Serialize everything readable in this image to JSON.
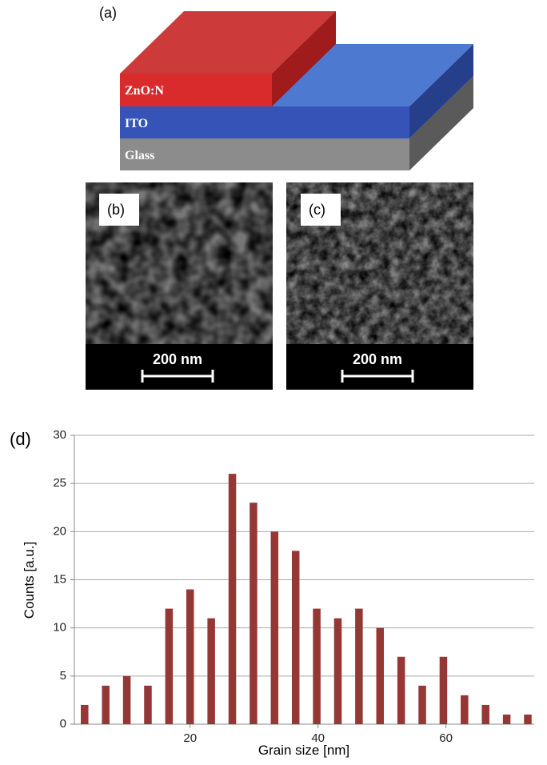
{
  "figure": {
    "panel_a": {
      "label": "(a)",
      "layers": [
        "ZnO:N",
        "ITO",
        "Glass"
      ]
    },
    "panel_b": {
      "label": "(b)",
      "scale_bar": "200 nm"
    },
    "panel_c": {
      "label": "(c)",
      "scale_bar": "200 nm"
    }
  },
  "chart_data": {
    "type": "bar",
    "panel_label": "(d)",
    "x_label": "Grain size [nm]",
    "y_label": "Counts [a.u.]",
    "x": [
      3.5,
      6.8,
      10.1,
      13.4,
      16.7,
      20.0,
      23.3,
      26.6,
      29.9,
      33.2,
      36.5,
      39.8,
      43.1,
      46.4,
      49.7,
      53.0,
      56.3,
      59.6,
      62.9,
      66.2,
      69.5,
      72.8
    ],
    "values": [
      2,
      4,
      5,
      4,
      12,
      14,
      11,
      26,
      23,
      20,
      18,
      12,
      11,
      12,
      10,
      7,
      4,
      7,
      3,
      2,
      1,
      1
    ],
    "color": "#953735",
    "xlim": [
      1.9,
      73.8
    ],
    "ylim": [
      0,
      30
    ],
    "xticks": [
      20,
      40,
      60
    ],
    "yticks": [
      0,
      5,
      10,
      15,
      20,
      25,
      30
    ],
    "grid": true
  }
}
